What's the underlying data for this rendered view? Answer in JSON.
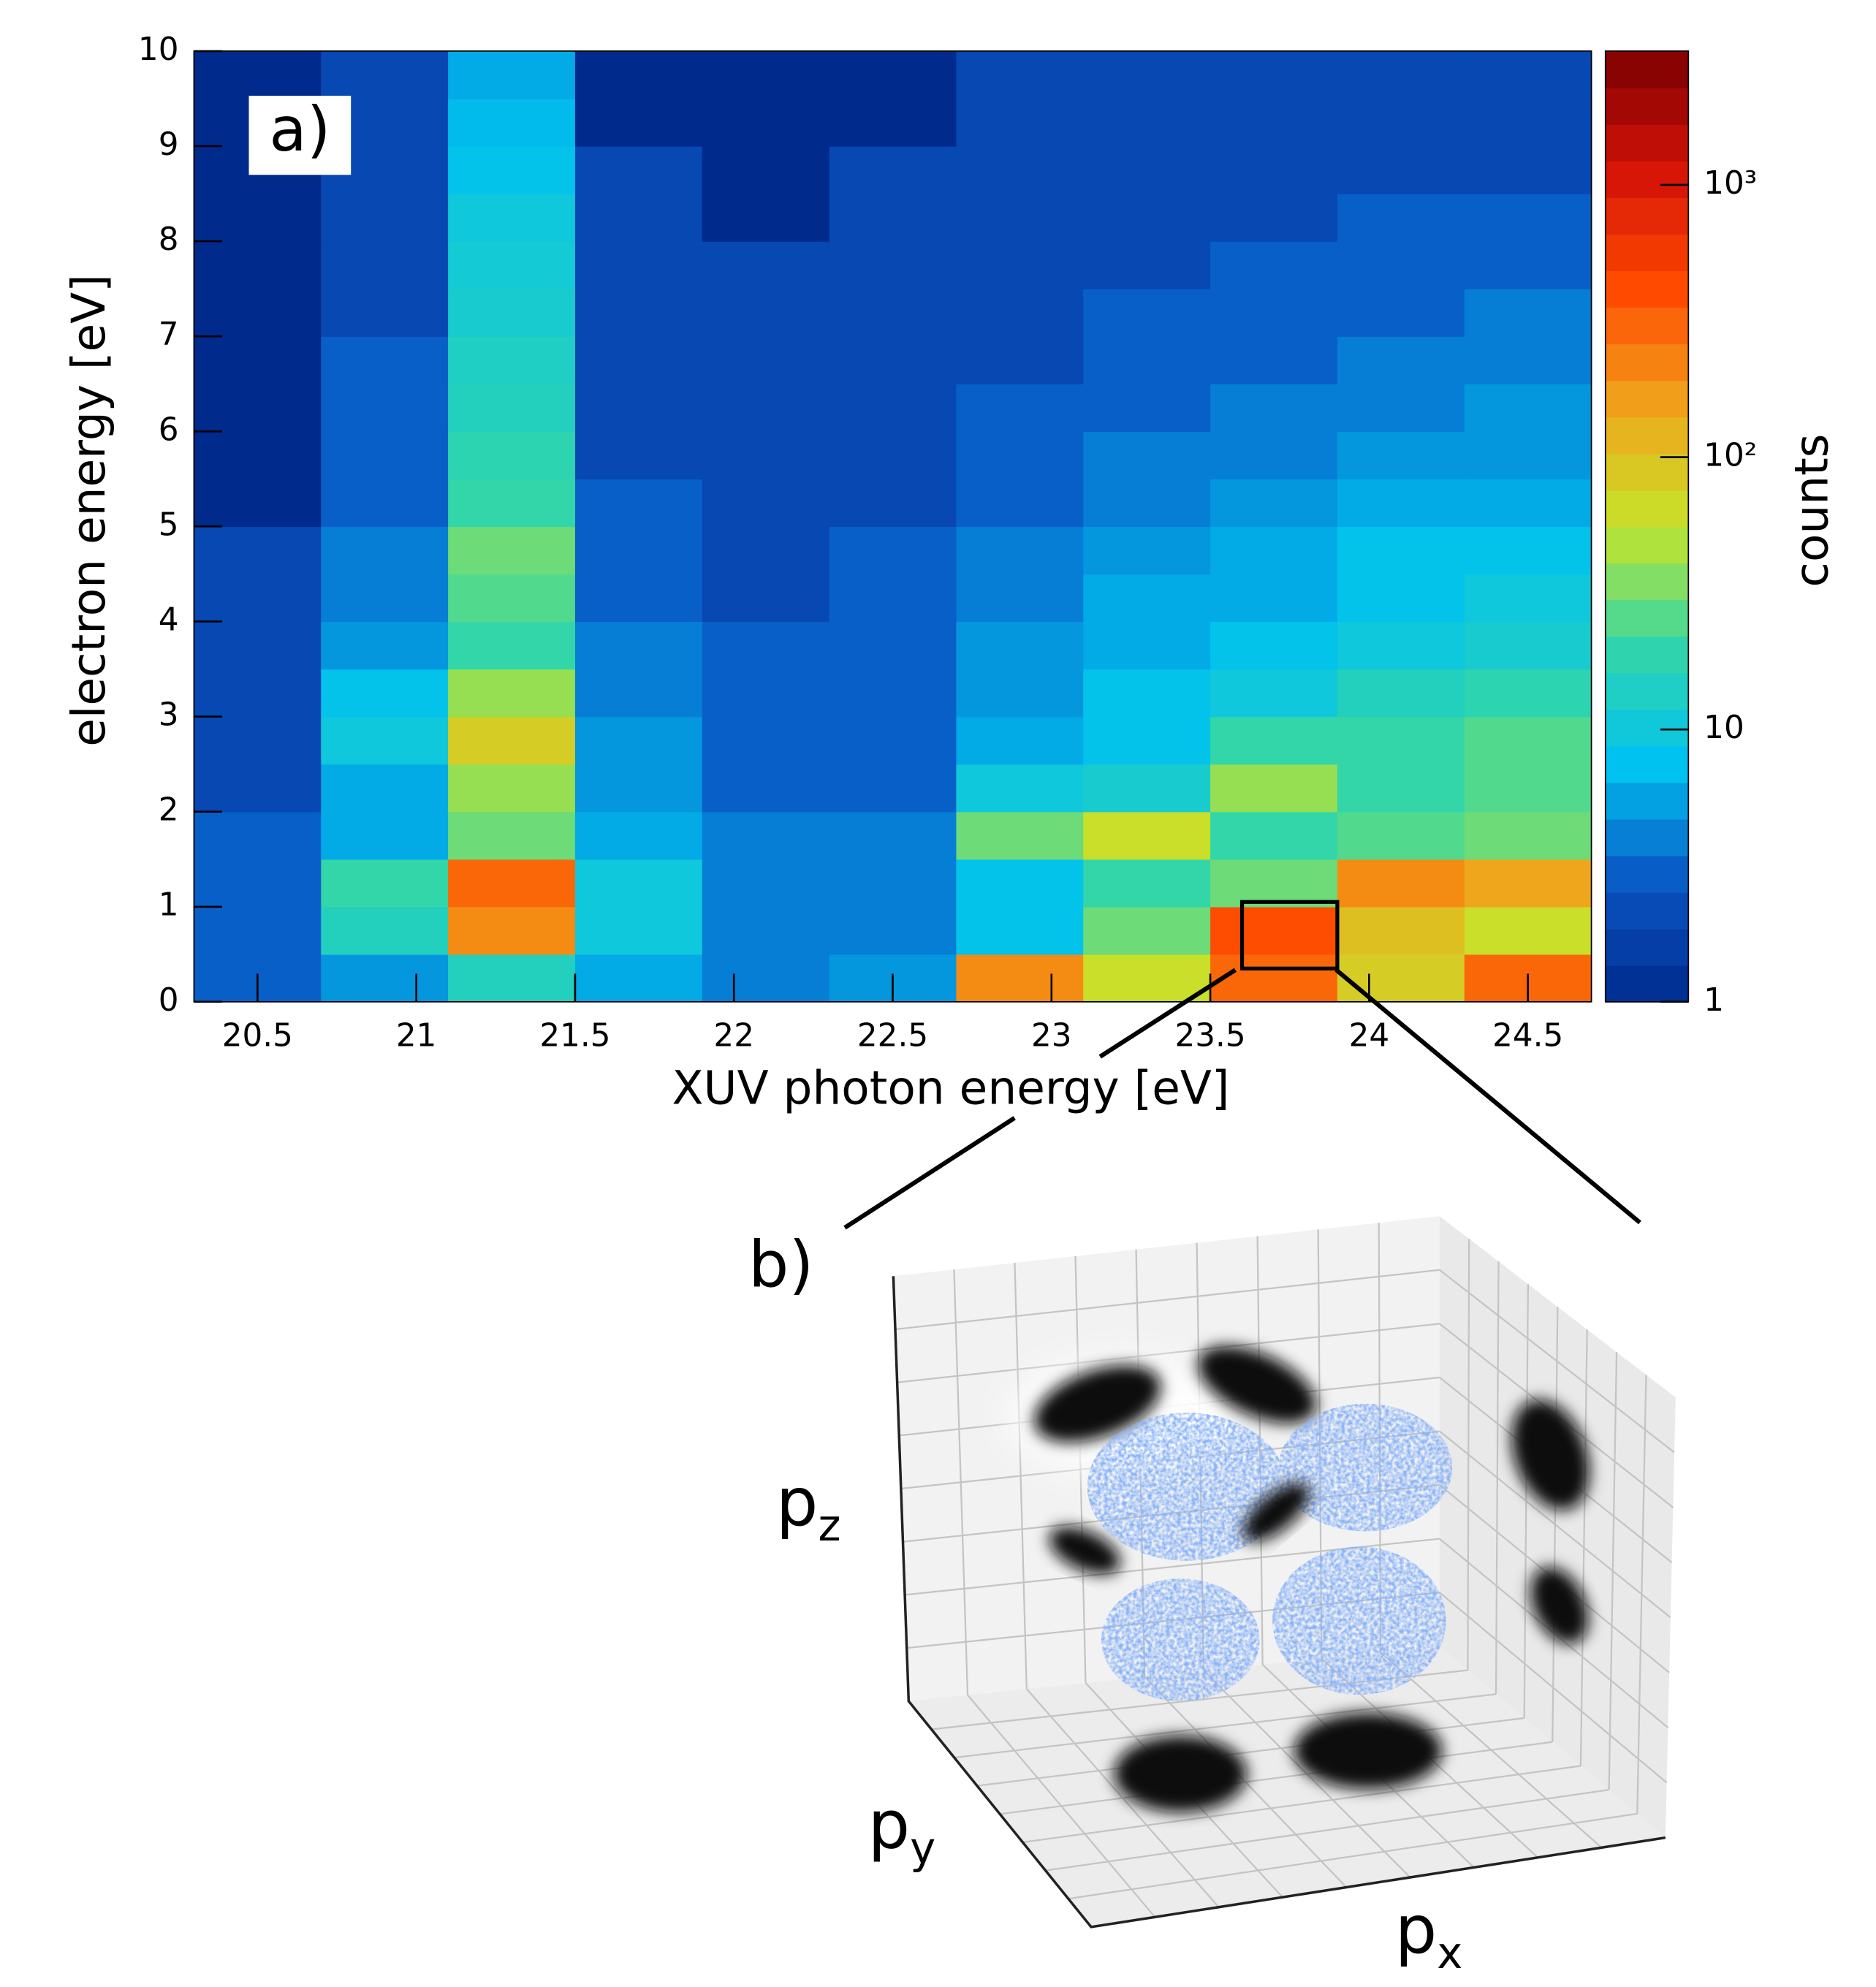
{
  "chart_data": {
    "type": "heatmap",
    "panel_label": "a)",
    "xlabel": "XUV photon energy [eV]",
    "ylabel": "electron energy [eV]",
    "colorbar_label": "counts",
    "xlim": [
      20.3,
      24.7
    ],
    "ylim": [
      0,
      10
    ],
    "xticks": [
      20.5,
      21,
      21.5,
      22,
      22.5,
      23,
      23.5,
      24,
      24.5
    ],
    "yticks": [
      0,
      1,
      2,
      3,
      4,
      5,
      6,
      7,
      8,
      9,
      10
    ],
    "clim": [
      1,
      3100
    ],
    "color_scale": "log",
    "cticks": [
      1,
      10,
      {
        "value": 100,
        "label": "10²"
      },
      {
        "value": 1000,
        "label": "10³"
      }
    ],
    "colormap": [
      "#002a8c",
      "#0a55c4",
      "#00c2f0",
      "#33d6a8",
      "#c6e42a",
      "#f0a51c",
      "#ff4a00",
      "#d41208",
      "#7a0000"
    ],
    "x_bins": [
      20.3,
      20.7,
      21.1,
      21.5,
      21.9,
      22.3,
      22.7,
      23.1,
      23.5,
      23.9,
      24.3,
      24.7
    ],
    "y_bins": [
      0,
      0.5,
      1,
      1.5,
      2,
      2.5,
      3,
      3.5,
      4,
      4.5,
      5,
      5.5,
      6,
      6.5,
      7,
      7.5,
      8,
      8.5,
      9,
      9.5,
      10
    ],
    "z": [
      [
        3,
        5,
        15,
        6,
        4,
        5,
        200,
        60,
        300,
        80,
        300
      ],
      [
        3,
        15,
        200,
        10,
        4,
        4,
        8,
        30,
        400,
        100,
        60
      ],
      [
        3,
        20,
        300,
        10,
        4,
        4,
        8,
        20,
        30,
        200,
        150
      ],
      [
        3,
        6,
        30,
        6,
        4,
        4,
        30,
        60,
        20,
        25,
        30
      ],
      [
        2,
        6,
        40,
        5,
        3,
        3,
        10,
        12,
        40,
        20,
        25
      ],
      [
        2,
        10,
        80,
        5,
        3,
        3,
        6,
        8,
        20,
        20,
        25
      ],
      [
        2,
        8,
        40,
        4,
        3,
        3,
        5,
        8,
        10,
        15,
        18
      ],
      [
        2,
        5,
        20,
        4,
        3,
        3,
        5,
        6,
        8,
        10,
        12
      ],
      [
        2,
        4,
        25,
        3,
        2,
        3,
        4,
        6,
        6,
        8,
        10
      ],
      [
        2,
        4,
        30,
        3,
        2,
        3,
        4,
        5,
        6,
        8,
        8
      ],
      [
        1,
        3,
        20,
        3,
        2,
        2,
        3,
        4,
        5,
        6,
        6
      ],
      [
        1,
        3,
        18,
        2,
        2,
        2,
        3,
        4,
        4,
        5,
        5
      ],
      [
        1,
        3,
        15,
        2,
        2,
        2,
        3,
        3,
        4,
        4,
        5
      ],
      [
        1,
        3,
        14,
        2,
        2,
        2,
        2,
        3,
        3,
        4,
        4
      ],
      [
        1,
        2,
        12,
        2,
        2,
        2,
        2,
        3,
        3,
        3,
        4
      ],
      [
        1,
        2,
        11,
        2,
        2,
        2,
        2,
        2,
        3,
        3,
        3
      ],
      [
        1,
        2,
        10,
        2,
        1,
        2,
        2,
        2,
        2,
        3,
        3
      ],
      [
        1,
        2,
        8,
        2,
        1,
        2,
        2,
        2,
        2,
        2,
        2
      ],
      [
        1,
        2,
        7,
        1,
        1,
        1,
        2,
        2,
        2,
        2,
        2
      ],
      [
        1,
        2,
        6,
        1,
        1,
        1,
        2,
        2,
        2,
        2,
        2
      ]
    ],
    "highlight": {
      "x": [
        23.6,
        23.9
      ],
      "y": [
        0.35,
        1.05
      ]
    }
  },
  "panel_b": {
    "label": "b)",
    "axes": [
      {
        "base": "p",
        "sub": "z"
      },
      {
        "base": "p",
        "sub": "y"
      },
      {
        "base": "p",
        "sub": "x"
      }
    ]
  }
}
